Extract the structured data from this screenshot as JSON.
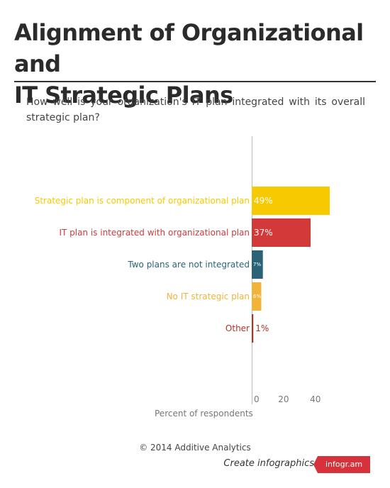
{
  "page": {
    "title": "Alignment of Organizational and\nIT Strategic Plans",
    "subtitle": "How well is your organization's IT plan integrated with its overall strategic plan?"
  },
  "chart_data": {
    "type": "bar",
    "orientation": "horizontal",
    "categories": [
      "Strategic plan is component of organizational plan",
      "IT plan is integrated with organizational plan",
      "Two plans are not integrated",
      "No IT strategic plan",
      "Other"
    ],
    "values": [
      49,
      37,
      7,
      6,
      1
    ],
    "value_labels": [
      "49%",
      "37%",
      "7%",
      "6%",
      "1%"
    ],
    "colors": [
      "#f7c900",
      "#d23a3a",
      "#2a6378",
      "#f2b33a",
      "#b03223"
    ],
    "xlabel": "Percent of respondents",
    "ylabel": "",
    "xlim": [
      0,
      49
    ],
    "ticks": [
      0,
      20,
      40
    ],
    "grid": false,
    "legend": "none"
  },
  "footer": {
    "credit": "© 2014 Additive Analytics",
    "create_text": "Create infographics",
    "badge_text": "infogr.am"
  }
}
